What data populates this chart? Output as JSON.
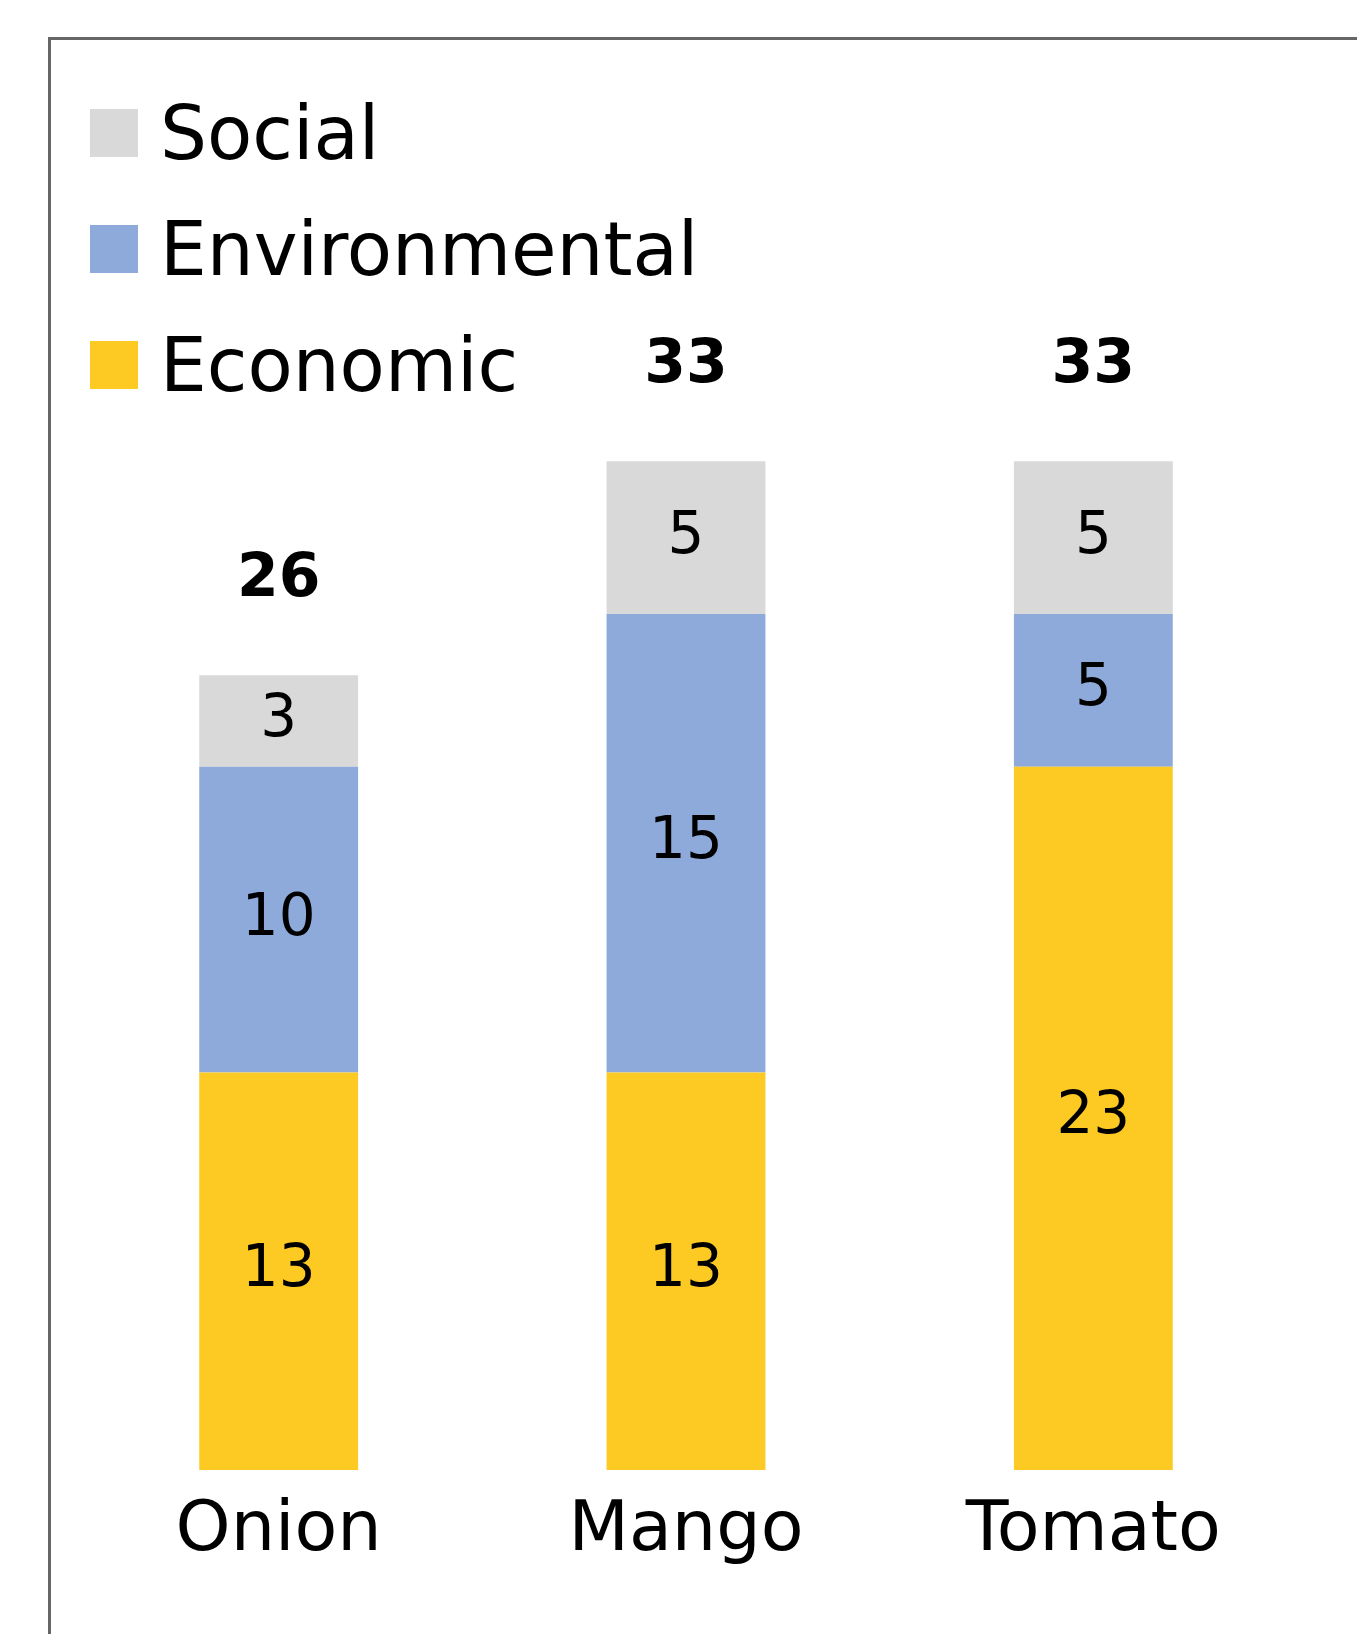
{
  "chart_data": {
    "type": "bar",
    "stacked": true,
    "categories": [
      "Onion",
      "Mango",
      "Tomato"
    ],
    "series": [
      {
        "name": "Economic",
        "color": "#fdca24",
        "values": [
          13,
          13,
          23
        ]
      },
      {
        "name": "Environmental",
        "color": "#8eaadb",
        "values": [
          10,
          15,
          5
        ]
      },
      {
        "name": "Social",
        "color": "#d9d9d9",
        "values": [
          3,
          5,
          5
        ]
      }
    ],
    "data_labels": true,
    "totals": [
      "26",
      "33",
      "33"
    ],
    "legend": "top left",
    "grid": false,
    "tick_labels": "x"
  }
}
